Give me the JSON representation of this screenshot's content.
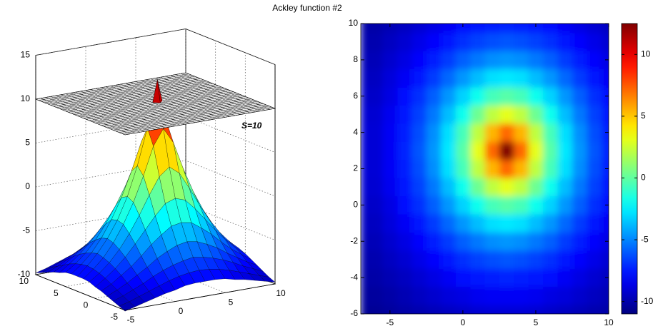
{
  "chart_data": [
    {
      "type": "surface",
      "xlim": [
        -5,
        10
      ],
      "ylim": [
        -5,
        10
      ],
      "zlim": [
        -10,
        15
      ],
      "xticks": [
        -5,
        0,
        5,
        10
      ],
      "yticks": [
        -5,
        0,
        5,
        10
      ],
      "zticks": [
        -10,
        -5,
        0,
        5,
        10,
        15
      ],
      "plane": 10,
      "annotation": "S=10"
    },
    {
      "type": "heatmap",
      "title": "Ackley function #2",
      "colormap": "jet",
      "x": [
        -6,
        -5,
        -4,
        -3,
        -2,
        -1,
        0,
        1,
        2,
        3,
        4,
        5,
        6,
        7,
        8,
        9,
        10
      ],
      "y": [
        -6,
        -5,
        -4,
        -3,
        -2,
        -1,
        0,
        1,
        2,
        3,
        4,
        5,
        6,
        7,
        8,
        9,
        10
      ],
      "z": [
        [
          -10.5,
          -10.3,
          -10.1,
          -9.9,
          -9.7,
          -9.5,
          -9.3,
          -9.1,
          -9,
          -9,
          -9,
          -9.1,
          -9.3,
          -9.5,
          -9.7,
          -9.9,
          -10.1
        ],
        [
          -10.3,
          -10.1,
          -9.8,
          -9.5,
          -9.2,
          -8.9,
          -8.7,
          -8.4,
          -8.3,
          -8.3,
          -8.3,
          -8.4,
          -8.7,
          -8.9,
          -9.2,
          -9.5,
          -9.8
        ],
        [
          -10.1,
          -9.8,
          -9.5,
          -9.1,
          -8.7,
          -8.3,
          -7.9,
          -7.6,
          -7.4,
          -7.3,
          -7.4,
          -7.6,
          -7.9,
          -8.3,
          -8.7,
          -9.1,
          -9.5
        ],
        [
          -9.9,
          -9.5,
          -9.1,
          -8.6,
          -8.1,
          -7.5,
          -7,
          -6.6,
          -6.3,
          -6.1,
          -6.3,
          -6.6,
          -7,
          -7.5,
          -8.1,
          -8.6,
          -9.1
        ],
        [
          -9.7,
          -9.2,
          -8.7,
          -8.1,
          -7.4,
          -6.7,
          -5.9,
          -5.3,
          -4.8,
          -4.6,
          -4.8,
          -5.3,
          -5.9,
          -6.7,
          -7.4,
          -8.1,
          -8.7
        ],
        [
          -9.5,
          -8.9,
          -8.3,
          -7.5,
          -6.7,
          -5.7,
          -4.6,
          -3.7,
          -2.9,
          -2.7,
          -2.9,
          -3.7,
          -4.6,
          -5.7,
          -6.7,
          -7.5,
          -8.3
        ],
        [
          -9.3,
          -8.7,
          -7.9,
          -7,
          -5.9,
          -4.6,
          -3.2,
          -1.8,
          -0.6,
          -0.2,
          -0.6,
          -1.8,
          -3.2,
          -4.6,
          -5.9,
          -7,
          -7.9
        ],
        [
          -9.1,
          -8.4,
          -7.6,
          -6.6,
          -5.3,
          -3.7,
          -1.8,
          0.3,
          2.2,
          3.1,
          2.2,
          0.3,
          -1.8,
          -3.7,
          -5.3,
          -6.6,
          -7.6
        ],
        [
          -9,
          -8.3,
          -7.4,
          -6.3,
          -4.8,
          -2.9,
          -0.6,
          2.2,
          5.4,
          7.2,
          5.4,
          2.2,
          -0.6,
          -2.9,
          -4.8,
          -6.3,
          -7.4
        ],
        [
          -9,
          -8.3,
          -7.3,
          -6.1,
          -4.6,
          -2.7,
          -0.2,
          3.1,
          7.2,
          12.5,
          7.2,
          3.1,
          -0.2,
          -2.7,
          -4.6,
          -6.1,
          -7.3
        ],
        [
          -9,
          -8.3,
          -7.4,
          -6.3,
          -4.8,
          -2.9,
          -0.6,
          2.2,
          5.4,
          7.2,
          5.4,
          2.2,
          -0.6,
          -2.9,
          -4.8,
          -6.3,
          -7.4
        ],
        [
          -9.1,
          -8.4,
          -7.6,
          -6.6,
          -5.3,
          -3.7,
          -1.8,
          0.3,
          2.2,
          3.1,
          2.2,
          0.3,
          -1.8,
          -3.7,
          -5.3,
          -6.6,
          -7.6
        ],
        [
          -9.3,
          -8.7,
          -7.9,
          -7,
          -5.9,
          -4.6,
          -3.2,
          -1.8,
          -0.6,
          -0.2,
          -0.6,
          -1.8,
          -3.2,
          -4.6,
          -5.9,
          -7,
          -7.9
        ],
        [
          -9.5,
          -8.9,
          -8.3,
          -7.5,
          -6.7,
          -5.7,
          -4.6,
          -3.7,
          -2.9,
          -2.7,
          -2.9,
          -3.7,
          -4.6,
          -5.7,
          -6.7,
          -7.5,
          -8.3
        ],
        [
          -9.7,
          -9.2,
          -8.7,
          -8.1,
          -7.4,
          -6.7,
          -5.9,
          -5.3,
          -4.8,
          -4.6,
          -4.8,
          -5.3,
          -5.9,
          -6.7,
          -7.4,
          -8.1,
          -8.7
        ],
        [
          -9.9,
          -9.5,
          -9.1,
          -8.6,
          -8.1,
          -7.5,
          -7,
          -6.6,
          -6.3,
          -6.1,
          -6.3,
          -6.6,
          -7,
          -7.5,
          -8.1,
          -8.6,
          -9.1
        ],
        [
          -10.1,
          -9.8,
          -9.5,
          -9.1,
          -8.7,
          -8.3,
          -7.9,
          -7.6,
          -7.4,
          -7.3,
          -7.4,
          -7.6,
          -7.9,
          -8.3,
          -8.7,
          -9.1,
          -9.5
        ]
      ],
      "xlim": [
        -7,
        10
      ],
      "ylim": [
        -6,
        10
      ],
      "xticks": [
        -5,
        0,
        5,
        10
      ],
      "yticks": [
        -6,
        -4,
        -2,
        0,
        2,
        4,
        6,
        8,
        10
      ],
      "clim": [
        -11,
        12.5
      ],
      "colorbar_ticks": [
        -10,
        -5,
        0,
        5,
        10
      ]
    }
  ]
}
